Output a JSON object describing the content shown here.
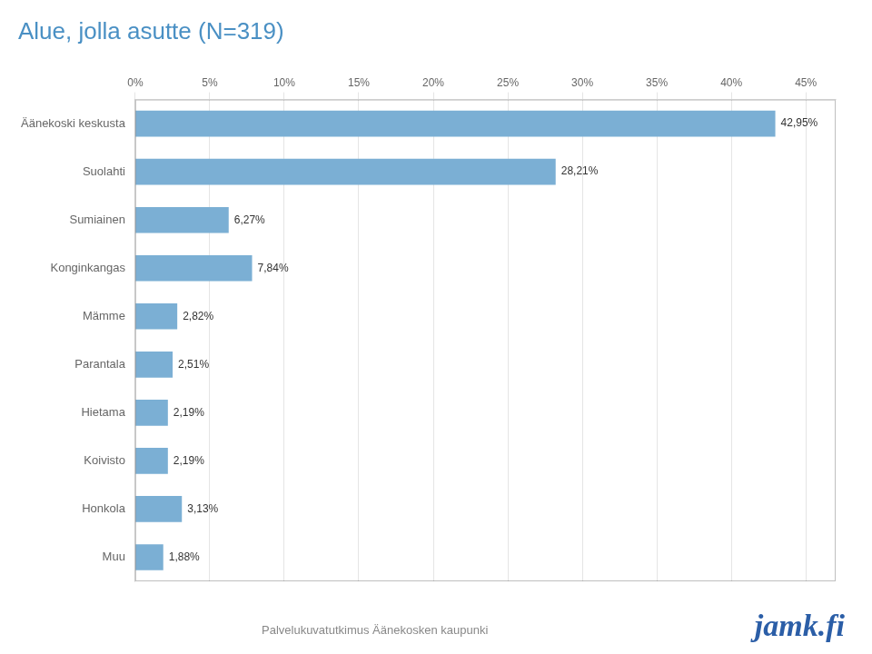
{
  "chart_data": {
    "type": "bar",
    "orientation": "horizontal",
    "title": "Alue, jolla asutte (N=319)",
    "categories": [
      "Äänekoski keskusta",
      "Suolahti",
      "Sumiainen",
      "Konginkangas",
      "Mämme",
      "Parantala",
      "Hietama",
      "Koivisto",
      "Honkola",
      "Muu"
    ],
    "values": [
      42.95,
      28.21,
      6.27,
      7.84,
      2.82,
      2.51,
      2.19,
      2.19,
      3.13,
      1.88
    ],
    "value_labels": [
      "42,95%",
      "28,21%",
      "6,27%",
      "7,84%",
      "2,82%",
      "2,51%",
      "2,19%",
      "2,19%",
      "3,13%",
      "1,88%"
    ],
    "data_labels": true,
    "color": "#7BAFD4",
    "xlim": [
      0,
      47
    ],
    "xticks": [
      {
        "value": 0,
        "label": "0%"
      },
      {
        "value": 5,
        "label": "5%"
      },
      {
        "value": 10,
        "label": "10%"
      },
      {
        "value": 15,
        "label": "15%"
      },
      {
        "value": 20,
        "label": "20%"
      },
      {
        "value": 25,
        "label": "25%"
      },
      {
        "value": 30,
        "label": "30%"
      },
      {
        "value": 35,
        "label": "35%"
      },
      {
        "value": 40,
        "label": "40%"
      },
      {
        "value": 45,
        "label": "45%"
      }
    ],
    "grid": true,
    "annotations": [
      "Palvelukuvatutkimus Äänekosken kaupunki",
      "jamk.fi"
    ]
  }
}
